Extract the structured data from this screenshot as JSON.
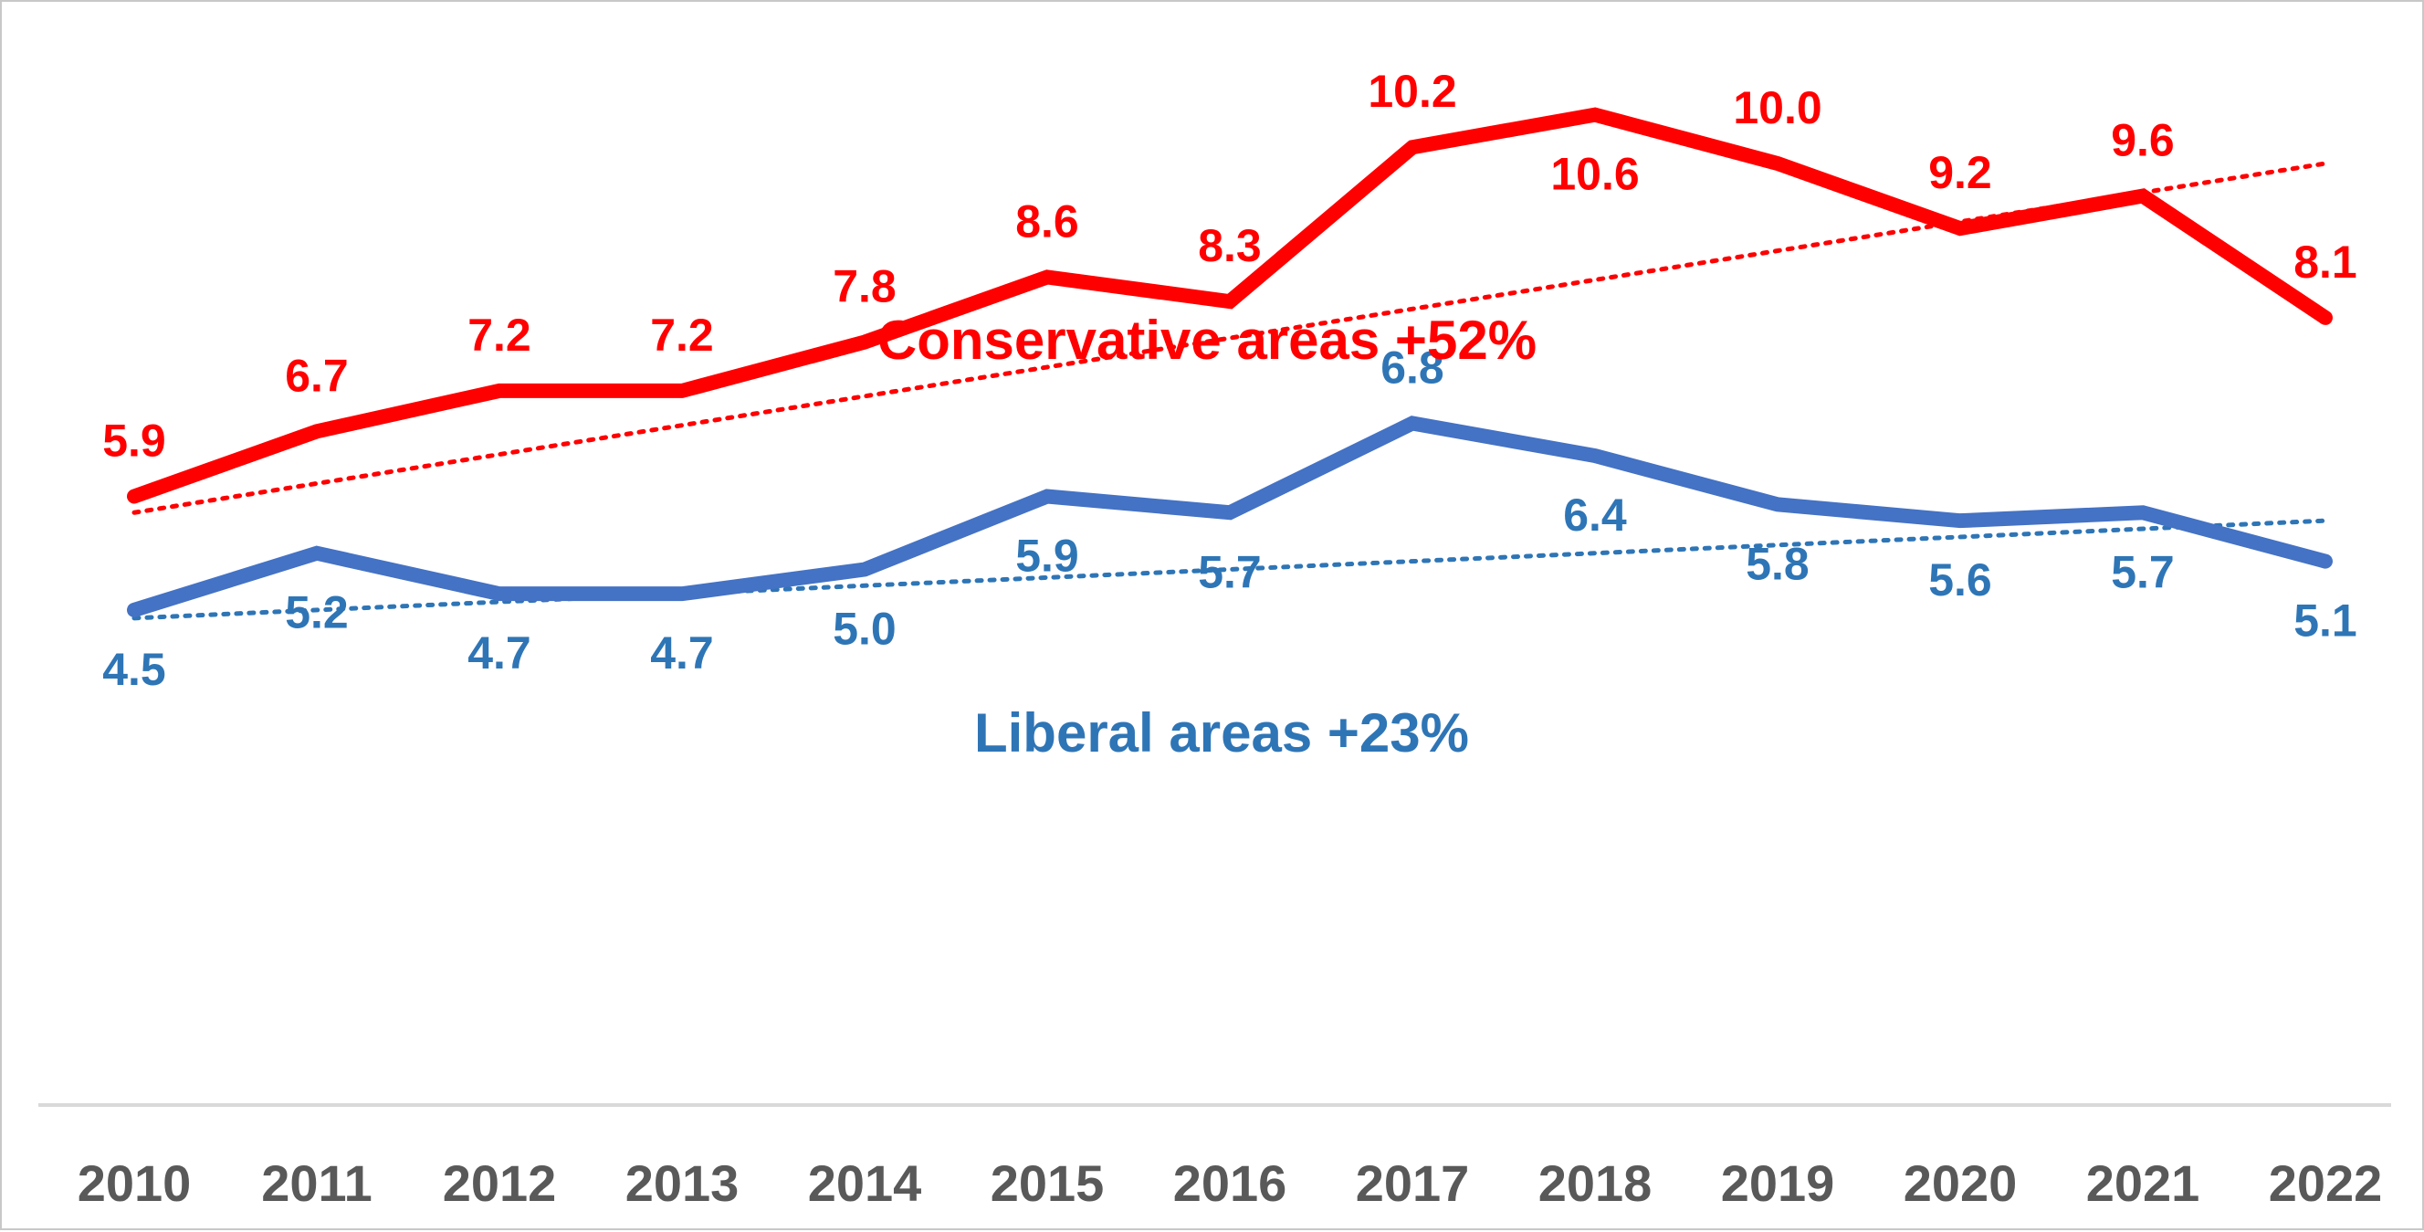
{
  "chart_data": {
    "type": "line",
    "x": [
      "2010",
      "2011",
      "2012",
      "2013",
      "2014",
      "2015",
      "2016",
      "2017",
      "2018",
      "2019",
      "2020",
      "2021",
      "2022"
    ],
    "series": [
      {
        "name": "Conservative areas",
        "values": [
          5.9,
          6.7,
          7.2,
          7.2,
          7.8,
          8.6,
          8.3,
          10.2,
          10.6,
          10.0,
          9.2,
          9.6,
          8.1
        ],
        "color": "#ff0000",
        "line_style": "solid",
        "trendline": {
          "style": "dotted",
          "start": 5.7,
          "end": 10.0
        }
      },
      {
        "name": "Liberal areas",
        "values": [
          4.5,
          5.2,
          4.7,
          4.7,
          5.0,
          5.9,
          5.7,
          6.8,
          6.4,
          5.8,
          5.6,
          5.7,
          5.1
        ],
        "color": "#4472c4",
        "label_color": "#2e75b6",
        "line_style": "solid",
        "trendline": {
          "style": "dotted",
          "start": 4.4,
          "end": 5.6
        }
      }
    ],
    "annotations": [
      {
        "text": "Conservative areas +52%",
        "color": "#ff0000"
      },
      {
        "text": "Liberal areas +23%",
        "color": "#2e75b6"
      }
    ],
    "title": "",
    "xlabel": "",
    "ylabel": "",
    "ylim": [
      0,
      12
    ],
    "grid": false,
    "legend": "none",
    "axis_color": "#d9d9d9",
    "tick_color": "#595959"
  }
}
